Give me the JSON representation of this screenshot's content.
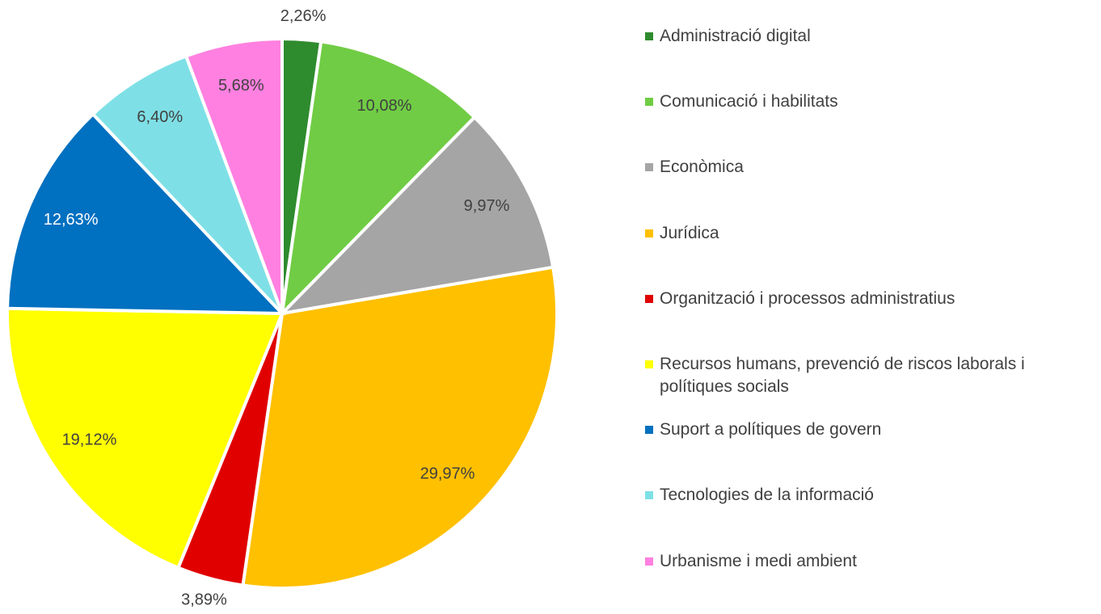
{
  "chart_data": {
    "type": "pie",
    "categories": [
      "Administració digital",
      "Comunicació i habilitats",
      "Econòmica",
      "Jurídica",
      "Organització i processos administratius",
      "Recursos humans, prevenció de riscos laborals i polítiques socials",
      "Suport a polítiques de govern",
      "Tecnologies de la informació",
      "Urbanisme i medi ambient"
    ],
    "values": [
      2.26,
      10.08,
      9.97,
      29.97,
      3.89,
      19.12,
      12.63,
      6.4,
      5.68
    ],
    "value_labels": [
      "2,26%",
      "10,08%",
      "9,97%",
      "29,97%",
      "3,89%",
      "19,12%",
      "12,63%",
      "6,40%",
      "5,68%"
    ],
    "colors": [
      "#2e8b2e",
      "#70cc44",
      "#a5a5a5",
      "#ffc000",
      "#e00000",
      "#ffff00",
      "#0070c0",
      "#7ee0e6",
      "#ff80e0"
    ],
    "legend": "right"
  }
}
